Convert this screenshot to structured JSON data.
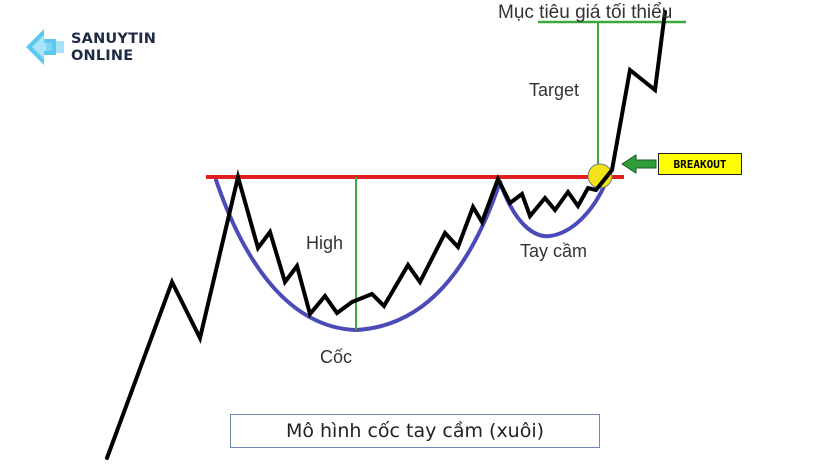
{
  "brand": {
    "line1": "SANUYTIN",
    "line2": "ONLINE",
    "icon": "arrow-logo-icon",
    "colors": {
      "arrow": "#5bc8f0",
      "text": "#1f2a44"
    }
  },
  "labels": {
    "target_min": "Mục tiêu giá tối thiểu",
    "target": "Target",
    "breakout": "BREAKOUT",
    "high": "High",
    "handle": "Tay cầm",
    "cup": "Cốc",
    "caption": "Mô hình cốc tay cầm (xuôi)"
  },
  "colors": {
    "resistance_line": "#e02020",
    "cup_curve": "#4a4ab8",
    "price_line": "#000000",
    "measure_line": "#3aa83a",
    "breakout_badge": "#ffff00",
    "breakout_circle": "#f5e31a",
    "breakout_arrow": "#2f9e3a",
    "caption_border": "#6f86b5"
  }
}
